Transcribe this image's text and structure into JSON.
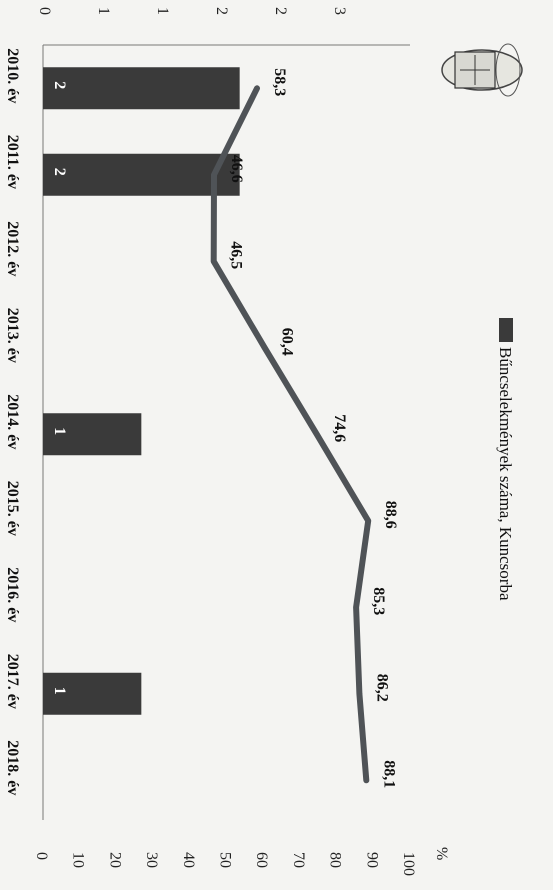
{
  "chart_data": {
    "type": "bar",
    "categories": [
      "2010. év",
      "2011. év",
      "2012. év",
      "2013. év",
      "2014. év",
      "2015. év",
      "2016. év",
      "2017. év",
      "2018. év"
    ],
    "series": [
      {
        "name": "Bűncselekmények száma, Kuncsorba",
        "type": "bar",
        "axis": "left",
        "values": [
          2,
          2,
          null,
          null,
          1,
          null,
          null,
          1,
          null
        ],
        "data_labels": [
          "2",
          "2",
          "",
          "",
          "1",
          "",
          "",
          "1",
          ""
        ]
      },
      {
        "type": "line",
        "axis": "right",
        "values": [
          58.3,
          46.6,
          46.5,
          60.4,
          74.6,
          88.6,
          85.3,
          86.2,
          88.1
        ],
        "data_labels": [
          "58,3",
          "46,6",
          "46,5",
          "60,4",
          "74,6",
          "88,6",
          "85,3",
          "86,2",
          "88,1"
        ]
      }
    ],
    "left_axis": {
      "ylim": [
        0,
        3
      ],
      "ticks": [
        "0",
        "1",
        "1",
        "2",
        "2",
        "3"
      ]
    },
    "right_axis": {
      "ylim": [
        0,
        100
      ],
      "ticks": [
        "0",
        "10",
        "20",
        "30",
        "40",
        "50",
        "60",
        "70",
        "80",
        "90",
        "100"
      ],
      "unit_label": "%"
    },
    "orientation": "rotated 90° clockwise",
    "legend_position": "top",
    "grid": false,
    "colors": {
      "bar": "#3a3a3a",
      "line": "#4f5357",
      "background": "#f4f4f2"
    }
  }
}
